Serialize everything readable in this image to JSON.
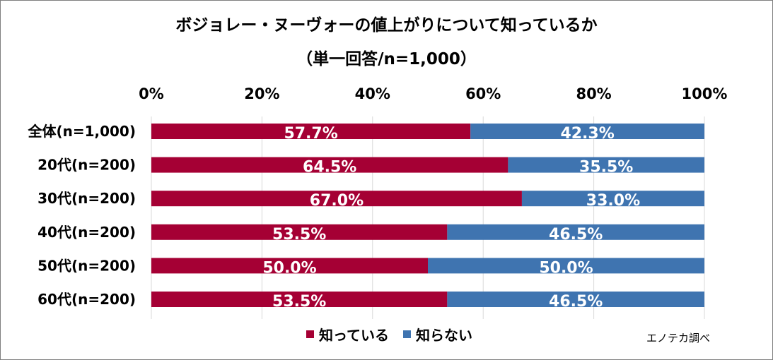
{
  "chart_data": {
    "type": "bar",
    "orientation": "horizontal",
    "stacked": true,
    "title": "ボジョレー・ヌーヴォーの値上がりについて知っているか",
    "subtitle": "（単一回答/n=1,000）",
    "categories": [
      "全体(n=1,000)",
      "20代(n=200)",
      "30代(n=200)",
      "40代(n=200)",
      "50代(n=200)",
      "60代(n=200)"
    ],
    "series": [
      {
        "name": "知っている",
        "color": "#a50034",
        "values": [
          57.7,
          64.5,
          67.0,
          53.5,
          50.0,
          53.5
        ],
        "labels": [
          "57.7%",
          "64.5%",
          "67.0%",
          "53.5%",
          "50.0%",
          "53.5%"
        ]
      },
      {
        "name": "知らない",
        "color": "#3f74b0",
        "values": [
          42.3,
          35.5,
          33.0,
          46.5,
          50.0,
          46.5
        ],
        "labels": [
          "42.3%",
          "35.5%",
          "33.0%",
          "46.5%",
          "50.0%",
          "46.5%"
        ]
      }
    ],
    "xlim": [
      0,
      100
    ],
    "xticks": [
      "0%",
      "20%",
      "40%",
      "60%",
      "80%",
      "100%"
    ],
    "axis_position": "top",
    "grid": true,
    "legend_position": "bottom",
    "source": "エノテカ調べ"
  }
}
